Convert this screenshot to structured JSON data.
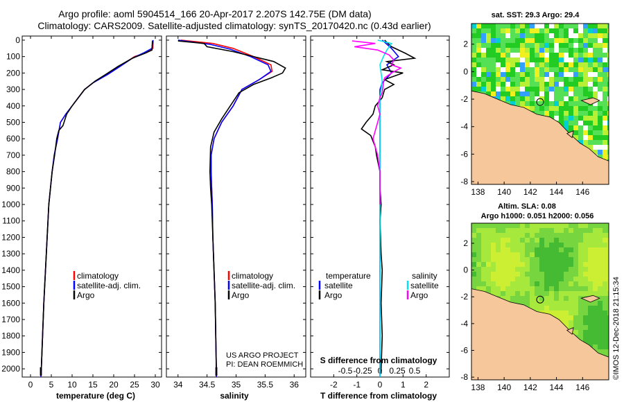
{
  "title": {
    "line1": "Argo profile: aoml 5904514_166 20-Apr-2017 2.207S 142.75E (DM data)",
    "line2": "Climatology: CARS2009. Satellite-adjusted climatology: synTS_20170420.nc (0.43d earlier)"
  },
  "colors": {
    "climatology": "#ff0000",
    "satellite": "#0000ff",
    "argo": "#000000",
    "sal_satellite": "#00e5ee",
    "sal_argo": "#ff00ff",
    "land": "#f6c79a"
  },
  "chart_data": [
    {
      "id": "temperature",
      "type": "line",
      "xlabel": "temperature (deg C)",
      "ylabel": "",
      "xlim": [
        -2,
        31.5
      ],
      "ylim": [
        2050,
        0
      ],
      "xticks": [
        0,
        5,
        10,
        15,
        20,
        25,
        30
      ],
      "yticks": [
        0,
        100,
        200,
        300,
        400,
        500,
        600,
        700,
        800,
        900,
        1000,
        1100,
        1200,
        1300,
        1400,
        1500,
        1600,
        1700,
        1800,
        1900,
        2000
      ],
      "legend": [
        "climatology",
        "satellite-adj. clim.",
        "Argo"
      ],
      "legend_position": "lower-left",
      "series": [
        {
          "name": "climatology",
          "color": "#ff0000",
          "points": [
            [
              29.5,
              0
            ],
            [
              29.4,
              50
            ],
            [
              28,
              75
            ],
            [
              25,
              100
            ],
            [
              22,
              150
            ],
            [
              19,
              200
            ],
            [
              15,
              260
            ],
            [
              13,
              300
            ],
            [
              11.5,
              350
            ],
            [
              10,
              400
            ],
            [
              8.5,
              450
            ],
            [
              7.2,
              500
            ],
            [
              6.5,
              600
            ],
            [
              5.7,
              700
            ],
            [
              5.2,
              800
            ],
            [
              4.8,
              900
            ],
            [
              4.4,
              1000
            ],
            [
              4,
              1200
            ],
            [
              3.6,
              1400
            ],
            [
              3.2,
              1600
            ],
            [
              2.9,
              1800
            ],
            [
              2.6,
              2000
            ],
            [
              2.5,
              2050
            ]
          ]
        },
        {
          "name": "satellite-adj. clim.",
          "color": "#0000ff",
          "points": [
            [
              29.4,
              0
            ],
            [
              29.2,
              50
            ],
            [
              27,
              80
            ],
            [
              24.5,
              110
            ],
            [
              21.5,
              160
            ],
            [
              18.5,
              210
            ],
            [
              15,
              260
            ],
            [
              13,
              300
            ],
            [
              11.5,
              350
            ],
            [
              10,
              400
            ],
            [
              8.5,
              450
            ],
            [
              7.2,
              500
            ],
            [
              6.5,
              600
            ],
            [
              5.7,
              700
            ],
            [
              5.2,
              800
            ],
            [
              4.8,
              900
            ],
            [
              4.4,
              1000
            ],
            [
              4,
              1200
            ],
            [
              3.6,
              1400
            ],
            [
              3.2,
              1600
            ],
            [
              2.9,
              1800
            ],
            [
              2.6,
              2000
            ],
            [
              2.5,
              2050
            ]
          ]
        },
        {
          "name": "Argo",
          "color": "#000000",
          "points": [
            [
              29.3,
              5
            ],
            [
              29.2,
              60
            ],
            [
              27.5,
              80
            ],
            [
              24.5,
              110
            ],
            [
              21,
              160
            ],
            [
              18,
              210
            ],
            [
              15.5,
              250
            ],
            [
              13,
              300
            ],
            [
              11.5,
              350
            ],
            [
              10,
              400
            ],
            [
              8.7,
              450
            ],
            [
              7.8,
              520
            ],
            [
              6.8,
              550
            ],
            [
              6.3,
              600
            ],
            [
              5.8,
              700
            ],
            [
              5.2,
              800
            ],
            [
              4.8,
              900
            ],
            [
              4.4,
              1000
            ],
            [
              4,
              1200
            ],
            [
              3.6,
              1400
            ],
            [
              3.2,
              1600
            ],
            [
              2.9,
              1800
            ],
            [
              2.6,
              2000
            ],
            [
              2.5,
              2030
            ]
          ]
        }
      ]
    },
    {
      "id": "salinity",
      "type": "line",
      "xlabel": "salinity",
      "xlim": [
        33.8,
        36.2
      ],
      "ylim": [
        2050,
        0
      ],
      "xticks": [
        34,
        34.5,
        35,
        35.5,
        36
      ],
      "legend": [
        "climatology",
        "satellite-adj. clim.",
        "Argo"
      ],
      "legend_position": "lower-right",
      "series": [
        {
          "name": "climatology",
          "color": "#ff0000",
          "points": [
            [
              34.05,
              0
            ],
            [
              34.6,
              20
            ],
            [
              34.95,
              50
            ],
            [
              35.3,
              100
            ],
            [
              35.6,
              150
            ],
            [
              35.62,
              190
            ],
            [
              35.4,
              240
            ],
            [
              35.1,
              300
            ],
            [
              34.95,
              400
            ],
            [
              34.75,
              500
            ],
            [
              34.62,
              600
            ],
            [
              34.57,
              700
            ],
            [
              34.57,
              800
            ],
            [
              34.58,
              900
            ],
            [
              34.59,
              1000
            ],
            [
              34.6,
              1200
            ],
            [
              34.62,
              1400
            ],
            [
              34.64,
              1600
            ],
            [
              34.65,
              1800
            ],
            [
              34.66,
              2000
            ],
            [
              34.66,
              2050
            ]
          ]
        },
        {
          "name": "satellite-adj. clim.",
          "color": "#0000ff",
          "points": [
            [
              34.0,
              0
            ],
            [
              34.55,
              25
            ],
            [
              34.9,
              55
            ],
            [
              35.25,
              100
            ],
            [
              35.55,
              150
            ],
            [
              35.6,
              190
            ],
            [
              35.4,
              240
            ],
            [
              35.1,
              300
            ],
            [
              34.95,
              400
            ],
            [
              34.75,
              500
            ],
            [
              34.62,
              600
            ],
            [
              34.57,
              700
            ],
            [
              34.57,
              800
            ],
            [
              34.58,
              900
            ],
            [
              34.59,
              1000
            ],
            [
              34.6,
              1200
            ],
            [
              34.62,
              1400
            ],
            [
              34.64,
              1600
            ],
            [
              34.65,
              1800
            ],
            [
              34.66,
              2000
            ],
            [
              34.66,
              2050
            ]
          ]
        },
        {
          "name": "Argo",
          "color": "#000000",
          "points": [
            [
              34.0,
              5
            ],
            [
              34.45,
              20
            ],
            [
              34.5,
              40
            ],
            [
              34.95,
              70
            ],
            [
              35.3,
              100
            ],
            [
              35.65,
              130
            ],
            [
              35.85,
              170
            ],
            [
              35.8,
              200
            ],
            [
              35.6,
              230
            ],
            [
              35.3,
              270
            ],
            [
              35.05,
              320
            ],
            [
              34.9,
              400
            ],
            [
              34.75,
              480
            ],
            [
              34.62,
              560
            ],
            [
              34.56,
              650
            ],
            [
              34.55,
              800
            ],
            [
              34.56,
              900
            ],
            [
              34.58,
              1000
            ],
            [
              34.6,
              1200
            ],
            [
              34.62,
              1400
            ],
            [
              34.64,
              1600
            ],
            [
              34.65,
              1800
            ],
            [
              34.66,
              2000
            ],
            [
              34.66,
              2030
            ]
          ]
        }
      ]
    },
    {
      "id": "difference",
      "type": "line",
      "xlabel": "T difference from climatology",
      "secondary_xlabel": "S difference from climatology",
      "xlim": [
        -3,
        3
      ],
      "ylim": [
        2050,
        0
      ],
      "xticks": [
        -2,
        -1,
        0,
        1,
        2
      ],
      "secondary_xticks": [
        "-0.5",
        "-0.25",
        "0",
        "0.25",
        "0.5"
      ],
      "legend": [
        "temperature",
        "satellite",
        "Argo",
        "salinity",
        "satellite",
        "Argo"
      ],
      "legend_position": "lower",
      "series": [
        {
          "name": "T satellite",
          "color": "#0000ff",
          "points": [
            [
              0.1,
              0
            ],
            [
              0.5,
              50
            ],
            [
              0.8,
              100
            ],
            [
              0.3,
              150
            ],
            [
              0.5,
              200
            ],
            [
              0.1,
              260
            ],
            [
              0,
              300
            ],
            [
              0,
              400
            ],
            [
              0,
              600
            ],
            [
              0,
              800
            ],
            [
              0,
              1000
            ],
            [
              0,
              1500
            ],
            [
              0,
              2000
            ],
            [
              0,
              2050
            ]
          ]
        },
        {
          "name": "T Argo",
          "color": "#000000",
          "points": [
            [
              0.2,
              0
            ],
            [
              0.5,
              40
            ],
            [
              1.1,
              80
            ],
            [
              1.5,
              110
            ],
            [
              0.3,
              130
            ],
            [
              0.6,
              150
            ],
            [
              0.1,
              180
            ],
            [
              1.0,
              200
            ],
            [
              0.2,
              240
            ],
            [
              0.6,
              270
            ],
            [
              0.2,
              300
            ],
            [
              0.1,
              350
            ],
            [
              -0.2,
              400
            ],
            [
              -0.3,
              450
            ],
            [
              -0.6,
              500
            ],
            [
              -0.8,
              540
            ],
            [
              -0.4,
              580
            ],
            [
              -0.2,
              650
            ],
            [
              -0.15,
              700
            ],
            [
              0,
              800
            ],
            [
              0,
              900
            ],
            [
              0.05,
              1000
            ],
            [
              0,
              1100
            ],
            [
              0.05,
              1300
            ],
            [
              0.1,
              1400
            ],
            [
              0.05,
              1600
            ],
            [
              0.1,
              1800
            ],
            [
              0.05,
              2000
            ],
            [
              0.05,
              2030
            ]
          ]
        },
        {
          "name": "S satellite",
          "color": "#00e5ee",
          "points": [
            [
              -0.1,
              0
            ],
            [
              0.5,
              20
            ],
            [
              0.3,
              60
            ],
            [
              0.15,
              100
            ],
            [
              0,
              150
            ],
            [
              0.1,
              250
            ],
            [
              0,
              350
            ],
            [
              0,
              500
            ],
            [
              0,
              800
            ],
            [
              0,
              1200
            ],
            [
              0,
              1600
            ],
            [
              0,
              2050
            ]
          ]
        },
        {
          "name": "S Argo",
          "color": "#ff00ff",
          "points": [
            [
              -1.2,
              5
            ],
            [
              -0.2,
              20
            ],
            [
              -1.1,
              40
            ],
            [
              -0.1,
              60
            ],
            [
              0.4,
              90
            ],
            [
              0.6,
              120
            ],
            [
              0.5,
              150
            ],
            [
              0.9,
              170
            ],
            [
              0.5,
              200
            ],
            [
              0.2,
              230
            ],
            [
              0.15,
              260
            ],
            [
              0.1,
              320
            ],
            [
              0,
              350
            ],
            [
              -0.1,
              400
            ],
            [
              0,
              450
            ],
            [
              -0.1,
              500
            ],
            [
              -0.2,
              550
            ],
            [
              -0.3,
              600
            ],
            [
              -0.2,
              650
            ],
            [
              -0.1,
              700
            ],
            [
              0,
              800
            ],
            [
              0,
              900
            ],
            [
              0,
              1000
            ]
          ]
        }
      ]
    },
    {
      "id": "sst-map",
      "type": "heatmap",
      "title": "sat. SST: 29.3 Argo: 29.4",
      "xlim": [
        137.5,
        148
      ],
      "ylim": [
        -8.2,
        3.5
      ],
      "xticks": [
        138,
        140,
        142,
        144,
        146
      ],
      "yticks": [
        2,
        0,
        -2,
        -4,
        -6,
        -8
      ],
      "marker": [
        142.75,
        -2.207
      ]
    },
    {
      "id": "sla-map",
      "type": "heatmap",
      "title": "Altim. SLA: 0.08",
      "subtitle": "Argo h1000: 0.051 h2000: 0.056",
      "xlim": [
        137.5,
        148
      ],
      "ylim": [
        -8.2,
        3.5
      ],
      "xticks": [
        138,
        140,
        142,
        144,
        146
      ],
      "yticks": [
        2,
        0,
        -2,
        -4,
        -6,
        -8
      ],
      "marker": [
        142.75,
        -2.207
      ]
    }
  ],
  "annotations": {
    "project": "US ARGO PROJECT",
    "pi": "PI: DEAN ROEMMICH",
    "credit": "©IMOS 12-Dec-2018 21:15:34"
  }
}
